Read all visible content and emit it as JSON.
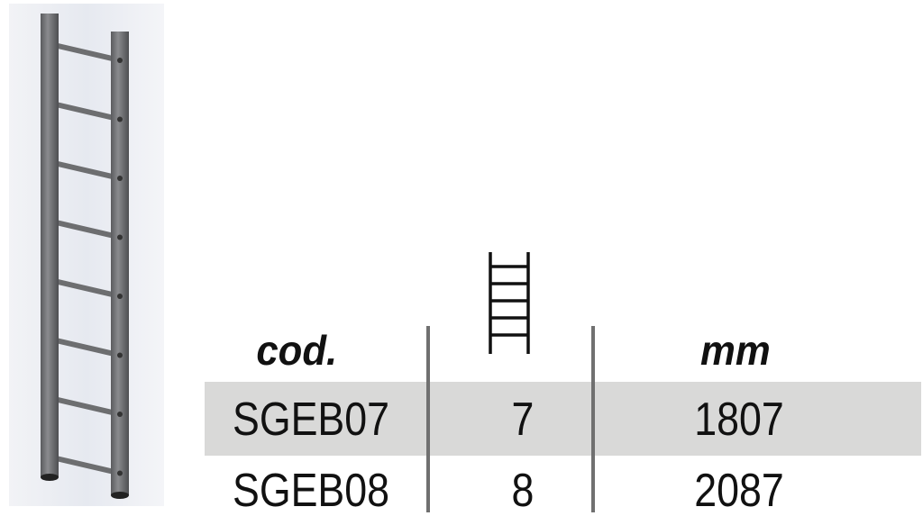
{
  "product_image": {
    "icon": "ladder-photo"
  },
  "table": {
    "headers": {
      "code": "cod.",
      "rungs_icon": "ladder-icon",
      "length": "mm"
    },
    "rows": [
      {
        "code": "SGEB07",
        "rungs": "7",
        "mm": "1807",
        "shaded": true
      },
      {
        "code": "SGEB08",
        "rungs": "8",
        "mm": "2087",
        "shaded": false
      }
    ]
  },
  "colors": {
    "row_shade": "#d9d9d8",
    "divider": "#707070",
    "ladder": "#6d6e70"
  }
}
